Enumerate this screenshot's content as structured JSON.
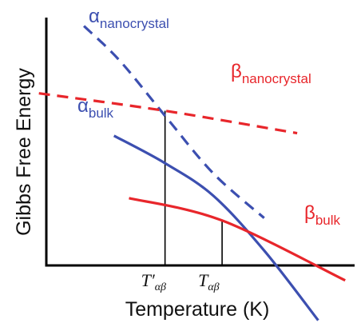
{
  "chart_data": {
    "type": "line",
    "xlabel": "Temperature (K)",
    "ylabel": "Gibbs Free Energy",
    "title": "",
    "grid": false,
    "legend": "none",
    "xlim": [
      0,
      100
    ],
    "ylim": [
      0,
      100
    ],
    "series": [
      {
        "name": "α_nanocrystal",
        "label_main": "α",
        "label_sub": "nanocrystal",
        "color": "#3c4fb0",
        "style": "dashed",
        "points": [
          [
            12,
            96
          ],
          [
            24,
            82
          ],
          [
            39,
            60
          ],
          [
            55,
            37
          ],
          [
            72,
            19
          ]
        ]
      },
      {
        "name": "β_nanocrystal",
        "label_main": "β",
        "label_sub": "nanocrystal",
        "color": "#e8262b",
        "style": "dashed",
        "points": [
          [
            -3,
            69
          ],
          [
            39,
            62
          ],
          [
            83,
            53
          ]
        ]
      },
      {
        "name": "α_bulk",
        "label_main": "α",
        "label_sub": "bulk",
        "color": "#3c4fb0",
        "style": "solid",
        "points": [
          [
            22,
            52
          ],
          [
            39,
            41
          ],
          [
            55,
            28
          ],
          [
            72,
            6
          ],
          [
            90,
            -22
          ]
        ]
      },
      {
        "name": "β_bulk",
        "label_main": "β",
        "label_sub": "bulk",
        "color": "#e8262b",
        "style": "solid",
        "points": [
          [
            27,
            27
          ],
          [
            58,
            18
          ],
          [
            99,
            -6
          ]
        ]
      }
    ],
    "markers": [
      {
        "label_main": "T′",
        "label_sub": "αβ",
        "x": 39,
        "y": 62
      },
      {
        "label_main": "T",
        "label_sub": "αβ",
        "x": 58,
        "y": 18
      }
    ]
  }
}
